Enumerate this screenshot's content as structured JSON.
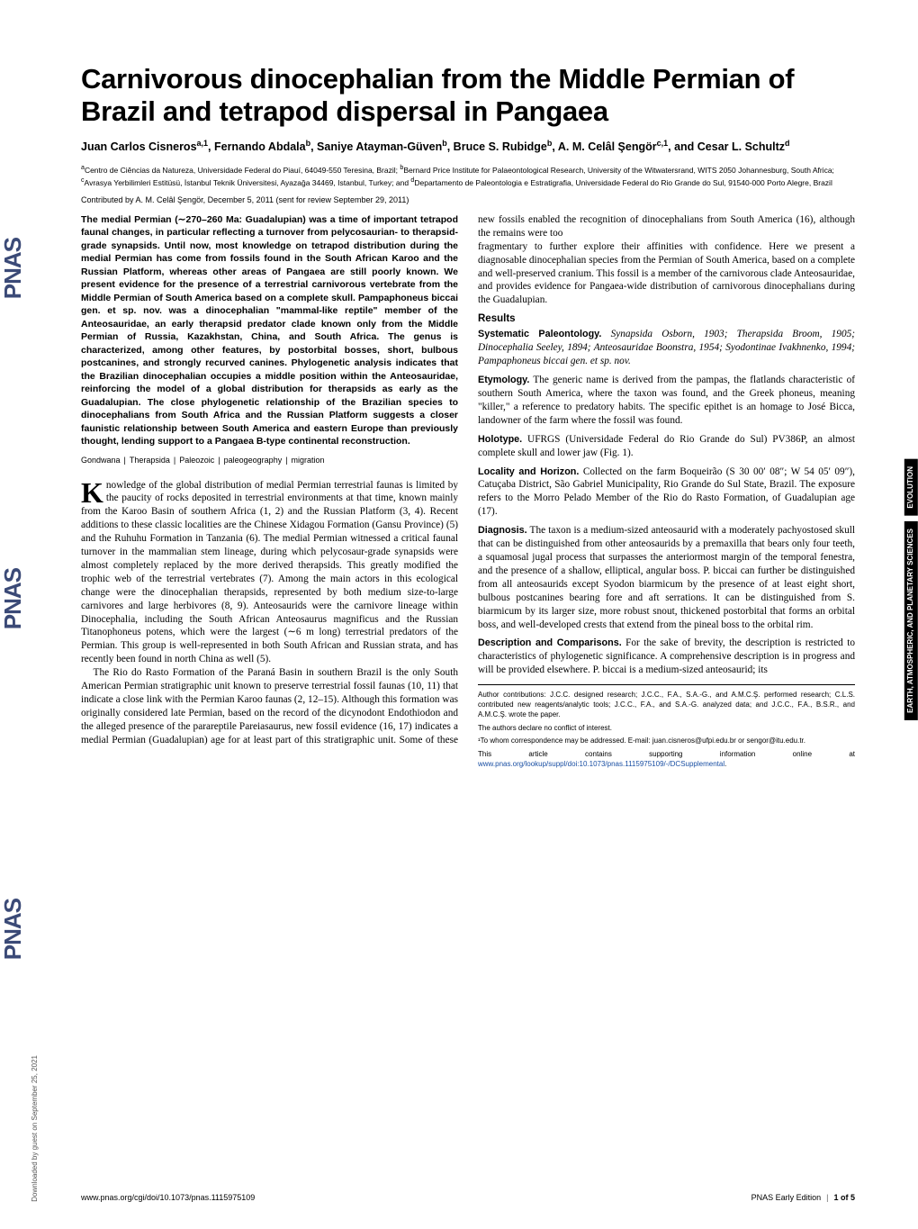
{
  "brand": {
    "text": "PNAS",
    "repeat": 3,
    "color": "#3b4a77"
  },
  "side_tags": [
    "EVOLUTION",
    "EARTH, ATMOSPHERIC,\nAND PLANETARY SCIENCES"
  ],
  "downloaded_note": "Downloaded by guest on September 25, 2021",
  "title": "Carnivorous dinocephalian from the Middle Permian of Brazil and tetrapod dispersal in Pangaea",
  "authors_html": "Juan Carlos Cisneros<sup>a,1</sup>, Fernando Abdala<sup>b</sup>, Saniye Atayman-Güven<sup>b</sup>, Bruce S. Rubidge<sup>b</sup>, A. M. Celâl Şengör<sup>c,1</sup>, and Cesar L. Schultz<sup>d</sup>",
  "affiliations_html": "<sup>a</sup>Centro de Ciências da Natureza, Universidade Federal do Piauí, 64049-550 Teresina, Brazil; <sup>b</sup>Bernard Price Institute for Palaeontological Research, University of the Witwatersrand, WITS 2050 Johannesburg, South Africa; <sup>c</sup>Avrasya Yerbilimleri Estitüsü, İstanbul Teknik Üniversitesi, Ayazağa 34469, Istanbul, Turkey; and <sup>d</sup>Departamento de Paleontologia e Estratigrafia, Universidade Federal do Rio Grande do Sul, 91540-000 Porto Alegre, Brazil",
  "contributed": "Contributed by A. M. Celâl Şengör, December 5, 2011 (sent for review September 29, 2011)",
  "abstract": "The medial Permian (∼270–260 Ma: Guadalupian) was a time of important tetrapod faunal changes, in particular reflecting a turnover from pelycosaurian- to therapsid-grade synapsids. Until now, most knowledge on tetrapod distribution during the medial Permian has come from fossils found in the South African Karoo and the Russian Platform, whereas other areas of Pangaea are still poorly known. We present evidence for the presence of a terrestrial carnivorous vertebrate from the Middle Permian of South America based on a complete skull. Pampaphoneus biccai gen. et sp. nov. was a dinocephalian \"mammal-like reptile\" member of the Anteosauridae, an early therapsid predator clade known only from the Middle Permian of Russia, Kazakhstan, China, and South Africa. The genus is characterized, among other features, by postorbital bosses, short, bulbous postcanines, and strongly recurved canines. Phylogenetic analysis indicates that the Brazilian dinocephalian occupies a middle position within the Anteosauridae, reinforcing the model of a global distribution for therapsids as early as the Guadalupian. The close phylogenetic relationship of the Brazilian species to dinocephalians from South Africa and the Russian Platform suggests a closer faunistic relationship between South America and eastern Europe than previously thought, lending support to a Pangaea B-type continental reconstruction.",
  "keywords": [
    "Gondwana",
    "Therapsida",
    "Paleozoic",
    "paleogeography",
    "migration"
  ],
  "body": {
    "intro_1": "Knowledge of the global distribution of medial Permian terrestrial faunas is limited by the paucity of rocks deposited in terrestrial environments at that time, known mainly from the Karoo Basin of southern Africa (1, 2) and the Russian Platform (3, 4). Recent additions to these classic localities are the Chinese Xidagou Formation (Gansu Province) (5) and the Ruhuhu Formation in Tanzania (6). The medial Permian witnessed a critical faunal turnover in the mammalian stem lineage, during which pelycosaur-grade synapsids were almost completely replaced by the more derived therapsids. This greatly modified the trophic web of the terrestrial vertebrates (7). Among the main actors in this ecological change were the dinocephalian therapsids, represented by both medium size-to-large carnivores and large herbivores (8, 9). Anteosaurids were the carnivore lineage within Dinocephalia, including the South African Anteosaurus magnificus and the Russian Titanophoneus potens, which were the largest (∼6 m long) terrestrial predators of the Permian. This group is well-represented in both South African and Russian strata, and has recently been found in north China as well (5).",
    "intro_2": "The Rio do Rasto Formation of the Paraná Basin in southern Brazil is the only South American Permian stratigraphic unit known to preserve terrestrial fossil faunas (10, 11) that indicate a close link with the Permian Karoo faunas (2, 12–15). Although this formation was originally considered late Permian, based on the record of the dicynodont Endothiodon and the alleged presence of the parareptile Pareiasaurus, new fossil evidence (16, 17) indicates a medial Permian (Guadalupian) age for at least part of this stratigraphic unit. Some of these new fossils enabled the recognition of dinocephalians from South America (16), although the remains were too",
    "intro_cont": "fragmentary to further explore their affinities with confidence. Here we present a diagnosable dinocephalian species from the Permian of South America, based on a complete and well-preserved cranium. This fossil is a member of the carnivorous clade Anteosauridae, and provides evidence for Pangaea-wide distribution of carnivorous dinocephalians during the Guadalupian.",
    "results_head": "Results",
    "syst_label": "Systematic Paleontology.",
    "syst_text": " Synapsida Osborn, 1903; Therapsida Broom, 1905; Dinocephalia Seeley, 1894; Anteosauridae Boonstra, 1954; Syodontinae Ivakhnenko, 1994; Pampaphoneus biccai gen. et sp. nov.",
    "etym_label": "Etymology.",
    "etym_text": " The generic name is derived from the pampas, the flatlands characteristic of southern South America, where the taxon was found, and the Greek phoneus, meaning \"killer,\" a reference to predatory habits. The specific epithet is an homage to José Bicca, landowner of the farm where the fossil was found.",
    "holo_label": "Holotype.",
    "holo_text": " UFRGS (Universidade Federal do Rio Grande do Sul) PV386P, an almost complete skull and lower jaw (Fig. 1).",
    "loc_label": "Locality and Horizon.",
    "loc_text": " Collected on the farm Boqueirão (S 30 00′ 08″; W 54 05′ 09″), Catuçaba District, São Gabriel Municipality, Rio Grande do Sul State, Brazil. The exposure refers to the Morro Pelado Member of the Rio do Rasto Formation, of Guadalupian age (17).",
    "diag_label": "Diagnosis.",
    "diag_text": " The taxon is a medium-sized anteosaurid with a moderately pachyostosed skull that can be distinguished from other anteosaurids by a premaxilla that bears only four teeth, a squamosal jugal process that surpasses the anteriormost margin of the temporal fenestra, and the presence of a shallow, elliptical, angular boss. P. biccai can further be distinguished from all anteosaurids except Syodon biarmicum by the presence of at least eight short, bulbous postcanines bearing fore and aft serrations. It can be distinguished from S. biarmicum by its larger size, more robust snout, thickened postorbital that forms an orbital boss, and well-developed crests that extend from the pineal boss to the orbital rim.",
    "desc_label": "Description and Comparisons.",
    "desc_text": " For the sake of brevity, the description is restricted to characteristics of phylogenetic significance. A comprehensive description is in progress and will be provided elsewhere. P. biccai is a medium-sized anteosaurid; its"
  },
  "footnotes": {
    "author_contrib": "Author contributions: J.C.C. designed research; J.C.C., F.A., S.A.-G., and A.M.C.Ş. performed research; C.L.S. contributed new reagents/analytic tools; J.C.C., F.A., and S.A.-G. analyzed data; and J.C.C., F.A., B.S.R., and A.M.C.Ş. wrote the paper.",
    "conflict": "The authors declare no conflict of interest.",
    "corr": "¹To whom correspondence may be addressed. E-mail: juan.cisneros@ufpi.edu.br or sengor@itu.edu.tr.",
    "si_prefix": "This article contains supporting information online at ",
    "si_link": "www.pnas.org/lookup/suppl/doi:10.1073/pnas.1115975109/-/DCSupplemental",
    "si_suffix": "."
  },
  "footer": {
    "doi": "www.pnas.org/cgi/doi/10.1073/pnas.1115975109",
    "edition": "PNAS Early Edition",
    "page": "1 of 5"
  },
  "colors": {
    "brand": "#3b4a77",
    "link": "#1a4fa3",
    "text": "#000000",
    "bg": "#ffffff"
  }
}
